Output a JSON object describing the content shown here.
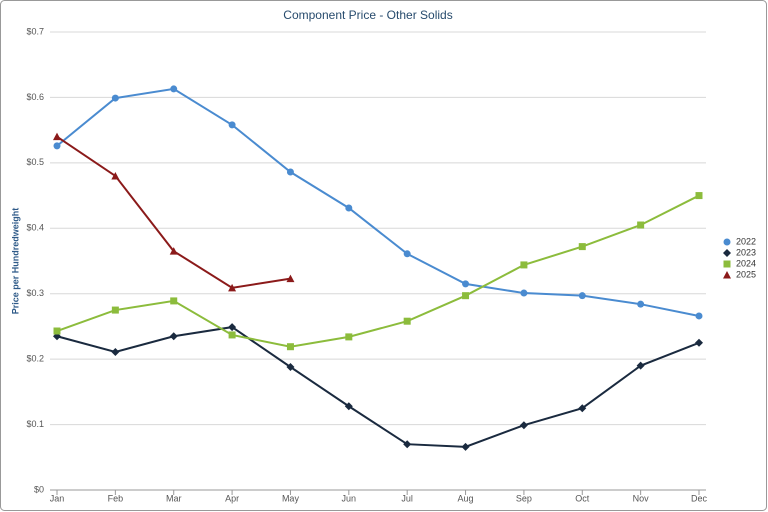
{
  "chart_data": {
    "type": "line",
    "title": "Component Price - Other Solids",
    "y_label": "Price per Hundredweight",
    "categories": [
      "Jan",
      "Feb",
      "Mar",
      "Apr",
      "May",
      "Jun",
      "Jul",
      "Aug",
      "Sep",
      "Oct",
      "Nov",
      "Dec"
    ],
    "series": [
      {
        "name": "2022",
        "color": "#4a8bd0",
        "marker": "circle",
        "values": [
          0.526,
          0.599,
          0.613,
          0.558,
          0.486,
          0.431,
          0.361,
          0.315,
          0.301,
          0.297,
          0.284,
          0.266
        ]
      },
      {
        "name": "2023",
        "color": "#1a2a3f",
        "marker": "diamond",
        "values": [
          0.235,
          0.211,
          0.235,
          0.249,
          0.188,
          0.128,
          0.07,
          0.066,
          0.099,
          0.125,
          0.19,
          0.225
        ]
      },
      {
        "name": "2024",
        "color": "#8cbc3c",
        "marker": "square",
        "values": [
          0.243,
          0.275,
          0.289,
          0.237,
          0.219,
          0.234,
          0.258,
          0.297,
          0.344,
          0.372,
          0.405,
          0.45
        ]
      },
      {
        "name": "2025",
        "color": "#8b1a1a",
        "marker": "triangle",
        "values": [
          0.54,
          0.48,
          0.365,
          0.309,
          0.323,
          null,
          null,
          null,
          null,
          null,
          null,
          null
        ]
      }
    ],
    "ylim": [
      0,
      0.7
    ],
    "yticks": [
      {
        "value": 0,
        "label": "$0"
      },
      {
        "value": 0.1,
        "label": "$0.1"
      },
      {
        "value": 0.2,
        "label": "$0.2"
      },
      {
        "value": 0.3,
        "label": "$0.3"
      },
      {
        "value": 0.4,
        "label": "$0.4"
      },
      {
        "value": 0.5,
        "label": "$0.5"
      },
      {
        "value": 0.6,
        "label": "$0.6"
      },
      {
        "value": 0.7,
        "label": "$0.7"
      }
    ],
    "grid": true,
    "legend": "right"
  }
}
